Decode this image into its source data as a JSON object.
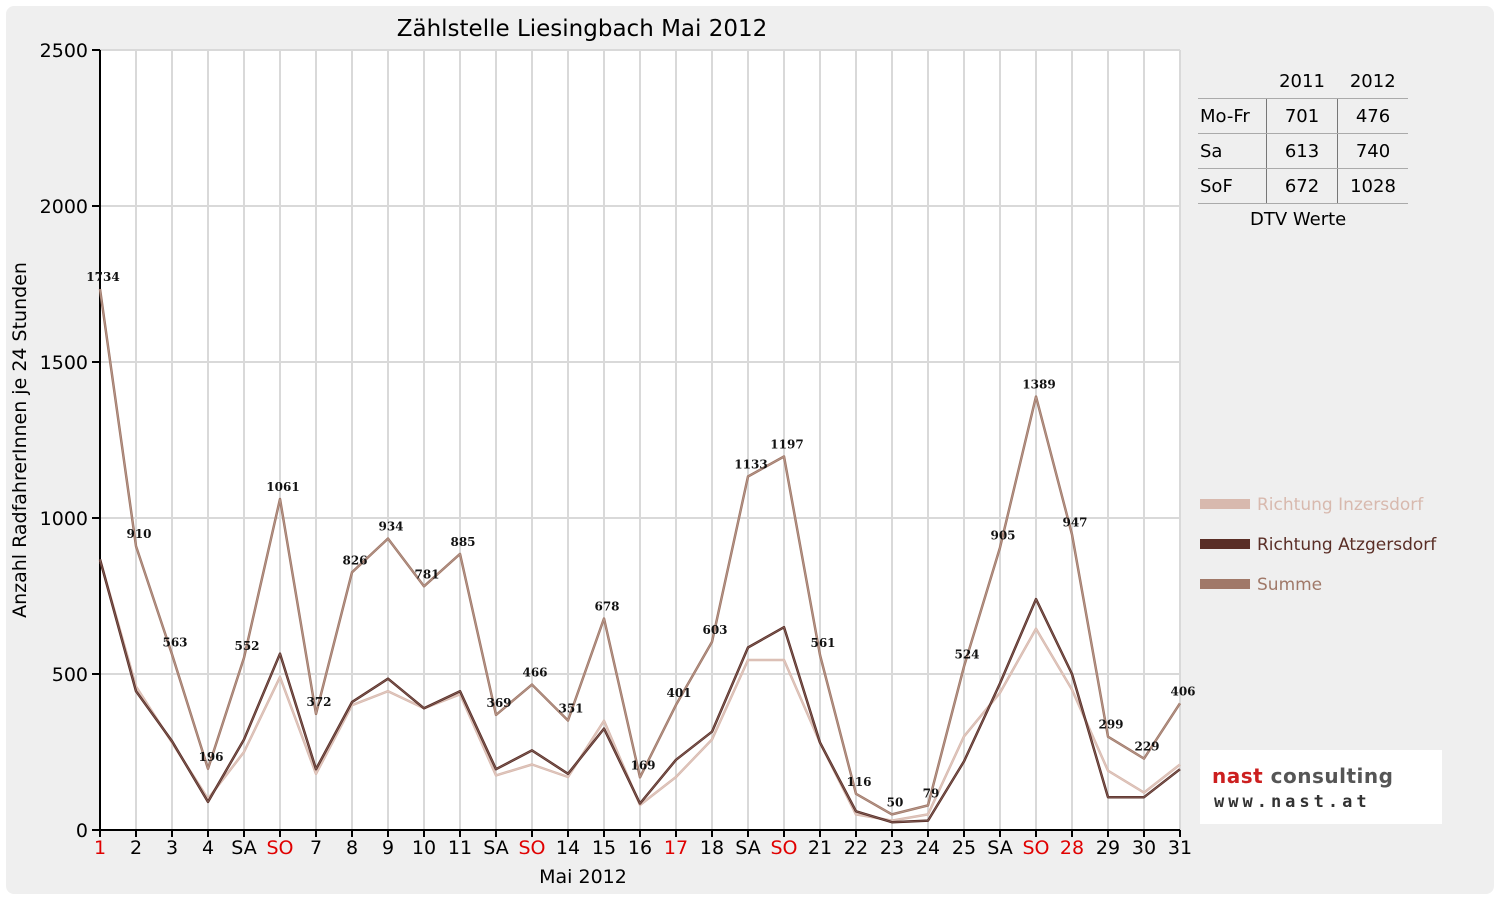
{
  "chart_data": {
    "type": "line",
    "title": "Zählstelle Liesingbach Mai 2012",
    "xlabel": "Mai 2012",
    "ylabel": "Anzahl RadfahrerInnen je 24 Stunden",
    "ylim": [
      0,
      2500
    ],
    "yticks": [
      "0",
      "500",
      "1000",
      "1500",
      "2000",
      "2500"
    ],
    "grid": true,
    "legend_position": "right",
    "categories": [
      "1",
      "2",
      "3",
      "4",
      "SA",
      "SO",
      "7",
      "8",
      "9",
      "10",
      "11",
      "SA",
      "SO",
      "14",
      "15",
      "16",
      "17",
      "18",
      "SA",
      "SO",
      "21",
      "22",
      "23",
      "24",
      "25",
      "SA",
      "SO",
      "28",
      "29",
      "30",
      "31"
    ],
    "holiday_indices": [
      0,
      5,
      12,
      16,
      19,
      26,
      27
    ],
    "holiday_color": "#e00000",
    "series": [
      {
        "name": "Richtung Inzersdorf",
        "color": "#d8b9ae",
        "values": [
          867,
          460,
          280,
          100,
          250,
          490,
          180,
          400,
          445,
          390,
          435,
          175,
          210,
          170,
          350,
          80,
          170,
          290,
          545,
          545,
          280,
          50,
          30,
          50,
          300,
          440,
          645,
          450,
          190,
          120,
          210
        ]
      },
      {
        "name": "Richtung Atzgersdorf",
        "color": "#5a2e26",
        "values": [
          867,
          445,
          285,
          90,
          290,
          565,
          195,
          410,
          485,
          390,
          445,
          195,
          255,
          180,
          325,
          85,
          225,
          315,
          585,
          650,
          280,
          60,
          25,
          30,
          220,
          470,
          740,
          500,
          105,
          105,
          195
        ]
      },
      {
        "name": "Summe",
        "color": "#a07868",
        "values": [
          1734,
          910,
          563,
          196,
          552,
          1061,
          372,
          826,
          934,
          781,
          885,
          369,
          466,
          351,
          678,
          169,
          401,
          603,
          1133,
          1197,
          561,
          116,
          50,
          79,
          524,
          905,
          1389,
          947,
          299,
          229,
          406
        ]
      }
    ],
    "data_labels": [
      "1734",
      "910",
      "563",
      "196",
      "552",
      "1061",
      "372",
      "826",
      "934",
      "781",
      "885",
      "369",
      "466",
      "351",
      "678",
      "169",
      "401",
      "603",
      "1133",
      "1197",
      "561",
      "116",
      "50",
      "79",
      "524",
      "905",
      "1389",
      "947",
      "299",
      "229",
      "406"
    ]
  },
  "dtv_table": {
    "years": [
      "2011",
      "2012"
    ],
    "rows": [
      {
        "label": "Mo-Fr",
        "v2011": "701",
        "v2012": "476"
      },
      {
        "label": "Sa",
        "v2011": "613",
        "v2012": "740"
      },
      {
        "label": "SoF",
        "v2011": "672",
        "v2012": "1028"
      }
    ],
    "caption": "DTV Werte"
  },
  "logo": {
    "name_part1": "nast",
    "name_part2": " consulting",
    "url": "www.nast.at"
  }
}
